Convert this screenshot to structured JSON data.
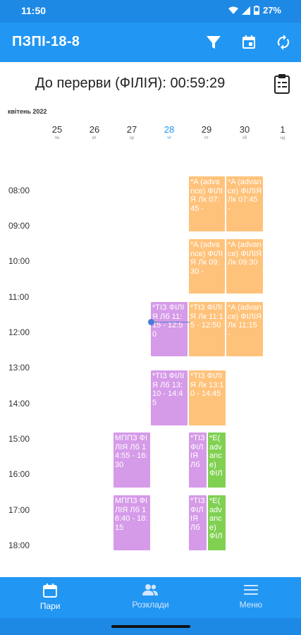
{
  "status": {
    "time": "11:50",
    "battery": "27%"
  },
  "appbar": {
    "title": "ПЗПІ-18-8",
    "icons": [
      "filter-icon",
      "calendar-icon",
      "sync-icon"
    ]
  },
  "break_banner": {
    "text": "До перерви (ФІЛІЯ): 00:59:29"
  },
  "calendar": {
    "month": "квітень 2022",
    "days": [
      {
        "num": "25",
        "abbr": "пн"
      },
      {
        "num": "26",
        "abbr": "вт"
      },
      {
        "num": "27",
        "abbr": "ср"
      },
      {
        "num": "28",
        "abbr": "чт"
      },
      {
        "num": "29",
        "abbr": "пт"
      },
      {
        "num": "30",
        "abbr": "сб"
      },
      {
        "num": "1",
        "abbr": "нд"
      }
    ],
    "hours": [
      "08:00",
      "09:00",
      "10:00",
      "11:00",
      "12:00",
      "13:00",
      "14:00",
      "15:00",
      "16:00",
      "17:00",
      "18:00"
    ],
    "events": {
      "e1": "*A (advance) ФІЛІЯ Лк 07:45 -",
      "e2": "*A (advance) ФІЛІЯ Лк 07:45 -",
      "e3": "*A (advance) ФІЛІЯ Лк 09:30 -",
      "e4": "*A (advance) ФІЛІЯ Лк 09:30",
      "e5": "*ТІЗ ФІЛІЯ Лб 11:15 - 12:50",
      "e6": "*ТІЗ ФІЛІЯ Лк 11:15 - 12:50",
      "e7": "*A (advance) ФІЛІЯ Лк 11:15 -",
      "e8": "*ТІЗ ФІЛІЯ Лб 13:10 - 14:45",
      "e9": "*ТІЗ ФІЛІЯ Лк 13:10 - 14:45",
      "e10": "МППЗ ФІЛІЯ Лб 14:55 - 16:30",
      "e11": "*ТІЗ ФІЛІЯ Лб",
      "e12": "*E( advance) ФІЛ",
      "e13": "МППЗ ФІЛІЯ Лб 16:40 - 18:15",
      "e14": "*ТІЗ ФІЛІЯ Лб",
      "e15": "*E( advance) ФІЛ"
    }
  },
  "bottom_nav": {
    "pairs": "Пари",
    "schedules": "Розклади",
    "menu": "Меню"
  },
  "colors": {
    "primary": "#2196f3",
    "orange": "#ffc27a",
    "purple": "#d59ae8",
    "green": "#80d052"
  }
}
